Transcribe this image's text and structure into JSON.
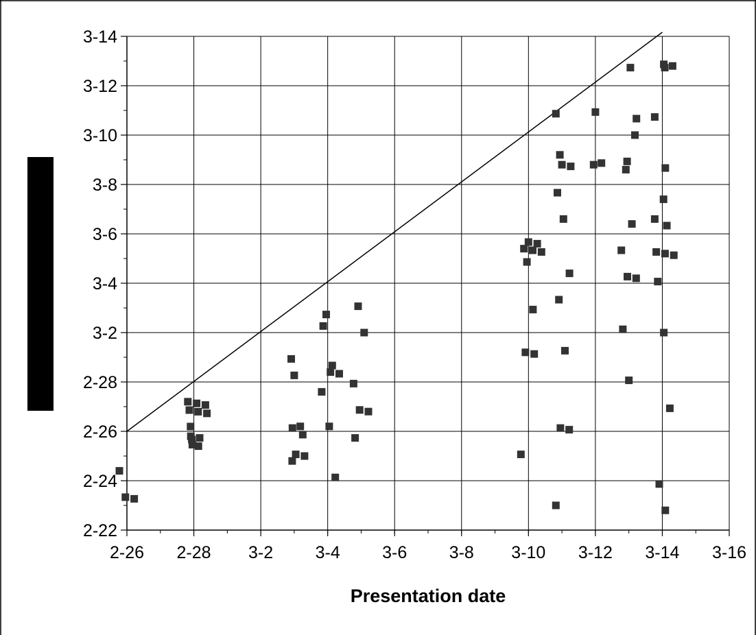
{
  "chart_data": {
    "type": "scatter",
    "title": "",
    "xlabel": "Presentation date",
    "ylabel": "",
    "x_unit": "date (month-day)",
    "y_unit": "date (month-day)",
    "year_note": "non-leap year; 2-28 is followed by 3-1",
    "xlim": [
      "2-26",
      "3-16"
    ],
    "ylim": [
      "2-22",
      "3-14"
    ],
    "x_ticks": [
      "2-26",
      "2-28",
      "3-2",
      "3-4",
      "3-6",
      "3-8",
      "3-10",
      "3-12",
      "3-14",
      "3-16"
    ],
    "y_ticks": [
      "2-22",
      "2-24",
      "2-26",
      "2-28",
      "3-2",
      "3-4",
      "3-6",
      "3-8",
      "3-10",
      "3-12",
      "3-14"
    ],
    "grid": true,
    "legend": "none",
    "marker": "square",
    "marker_color": "#333333",
    "reference_line": {
      "label": "",
      "x": [
        "2-26",
        "3-14"
      ],
      "y": [
        "2-26",
        "3-14"
      ]
    },
    "series": [
      {
        "x": [
          "2-26",
          "2-26",
          "2-26",
          "2-28",
          "2-28",
          "2-28",
          "2-28",
          "2-28",
          "2-28",
          "2-28",
          "2-28",
          "2-28",
          "2-28",
          "2-28",
          "2-28",
          "3-3",
          "3-3",
          "3-3",
          "3-3",
          "3-3",
          "3-3",
          "3-3",
          "3-3",
          "3-4",
          "3-4",
          "3-4",
          "3-4",
          "3-4",
          "3-4",
          "3-4",
          "3-4",
          "3-5",
          "3-5",
          "3-5",
          "3-5",
          "3-5",
          "3-5",
          "3-10",
          "3-10",
          "3-10",
          "3-10",
          "3-10",
          "3-10",
          "3-10",
          "3-10",
          "3-10",
          "3-10",
          "3-11",
          "3-11",
          "3-11",
          "3-11",
          "3-11",
          "3-11",
          "3-11",
          "3-11",
          "3-11",
          "3-11",
          "3-11",
          "3-11",
          "3-12",
          "3-12",
          "3-12",
          "3-13",
          "3-13",
          "3-13",
          "3-13",
          "3-13",
          "3-13",
          "3-13",
          "3-13",
          "3-13",
          "3-13",
          "3-13",
          "3-14",
          "3-14",
          "3-14",
          "3-14",
          "3-14",
          "3-14",
          "3-14",
          "3-14",
          "3-14",
          "3-14",
          "3-14",
          "3-14",
          "3-14",
          "3-14",
          "3-14",
          "3-14"
        ],
        "y": [
          "2-24",
          "2-23",
          "2-23",
          "2-27",
          "2-27",
          "2-27",
          "2-27",
          "2-27",
          "2-27",
          "2-26",
          "2-26",
          "2-26",
          "2-26",
          "2-25",
          "2-26",
          "2-28",
          "2-26",
          "2-26",
          "2-25",
          "2-25",
          "3-1",
          "2-26",
          "2-25",
          "3-3",
          "3-1",
          "2-28",
          "2-28",
          "2-28",
          "3-2",
          "2-26",
          "2-24",
          "3-3",
          "3-2",
          "2-28",
          "2-27",
          "2-27",
          "2-26",
          "3-6",
          "3-6",
          "3-5",
          "3-5",
          "3-5",
          "3-1",
          "3-1",
          "2-25",
          "3-5",
          "3-3",
          "3-11",
          "3-9",
          "3-9",
          "3-8",
          "3-7",
          "3-4",
          "3-3",
          "3-1",
          "3-9",
          "2-26",
          "2-26",
          "2-23",
          "3-11",
          "3-9",
          "3-9",
          "3-13",
          "3-11",
          "3-9",
          "3-6",
          "3-5",
          "3-4",
          "3-4",
          "3-2",
          "2-28",
          "3-10",
          "3-9",
          "3-13",
          "3-13",
          "3-13",
          "3-9",
          "3-7",
          "3-7",
          "3-6",
          "3-5",
          "3-5",
          "3-5",
          "3-4",
          "3-2",
          "2-27",
          "2-24",
          "2-23",
          "3-11"
        ]
      }
    ]
  }
}
